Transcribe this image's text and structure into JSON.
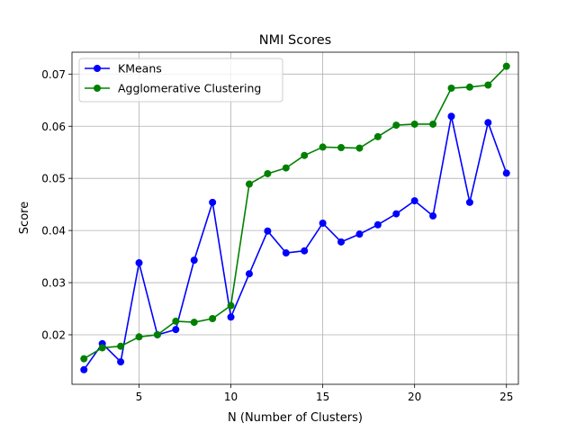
{
  "chart_data": {
    "type": "line",
    "title": "NMI Scores",
    "xlabel": "N (Number of Clusters)",
    "ylabel": "Score",
    "xlim": [
      1.35,
      25.65
    ],
    "ylim": [
      0.0105,
      0.0742
    ],
    "x_ticks": [
      5,
      10,
      15,
      20,
      25
    ],
    "x_tick_labels": [
      "5",
      "10",
      "15",
      "20",
      "25"
    ],
    "y_ticks": [
      0.02,
      0.03,
      0.04,
      0.05,
      0.06,
      0.07
    ],
    "y_tick_labels": [
      "0.02",
      "0.03",
      "0.04",
      "0.05",
      "0.06",
      "0.07"
    ],
    "grid": true,
    "legend_position": "top-left",
    "x": [
      2,
      3,
      4,
      5,
      6,
      7,
      8,
      9,
      10,
      11,
      12,
      13,
      14,
      15,
      16,
      17,
      18,
      19,
      20,
      21,
      22,
      23,
      24,
      25
    ],
    "series": [
      {
        "name": "KMeans",
        "color": "#0000ff",
        "values": [
          0.0133,
          0.0183,
          0.0148,
          0.0338,
          0.02,
          0.021,
          0.0343,
          0.0454,
          0.0234,
          0.0317,
          0.0399,
          0.0357,
          0.0361,
          0.0414,
          0.0378,
          0.0393,
          0.0411,
          0.0432,
          0.0457,
          0.0428,
          0.0619,
          0.0454,
          0.0607,
          0.051
        ]
      },
      {
        "name": "Agglomerative Clustering",
        "color": "#008000",
        "values": [
          0.0154,
          0.0175,
          0.0178,
          0.0196,
          0.02,
          0.0226,
          0.0224,
          0.0231,
          0.0256,
          0.0489,
          0.0509,
          0.052,
          0.0544,
          0.056,
          0.0559,
          0.0558,
          0.058,
          0.0602,
          0.0604,
          0.0604,
          0.0673,
          0.0675,
          0.0679,
          0.0715
        ]
      }
    ]
  }
}
